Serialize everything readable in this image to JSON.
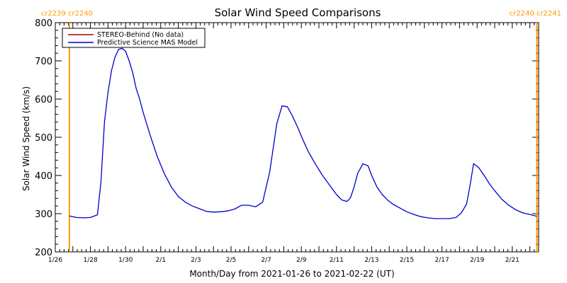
{
  "chart_data": {
    "type": "line",
    "title": "Solar Wind Speed Comparisons",
    "xlabel": "Month/Day from 2021-01-26 to 2021-02-22 (UT)",
    "ylabel": "Solar Wind Speed (km/s)",
    "ylim": [
      200,
      800
    ],
    "xlim_days": [
      0,
      27.5
    ],
    "y_ticks": [
      200,
      300,
      400,
      500,
      600,
      700,
      800
    ],
    "x_ticks": [
      {
        "day": 0,
        "label": "1/26"
      },
      {
        "day": 2,
        "label": "1/28"
      },
      {
        "day": 4,
        "label": "1/30"
      },
      {
        "day": 6,
        "label": "2/1"
      },
      {
        "day": 8,
        "label": "2/3"
      },
      {
        "day": 10,
        "label": "2/5"
      },
      {
        "day": 12,
        "label": "2/7"
      },
      {
        "day": 14,
        "label": "2/9"
      },
      {
        "day": 16,
        "label": "2/11"
      },
      {
        "day": 18,
        "label": "2/13"
      },
      {
        "day": 20,
        "label": "2/15"
      },
      {
        "day": 22,
        "label": "2/17"
      },
      {
        "day": 24,
        "label": "2/19"
      },
      {
        "day": 26,
        "label": "2/21"
      }
    ],
    "legend": {
      "placement": "top-left",
      "entries": [
        {
          "label": "STEREO-Behind (No data)",
          "color": "#aa0000"
        },
        {
          "label": "Predictive Science MAS Model",
          "color": "#0000cc"
        }
      ]
    },
    "carrington_markers": [
      {
        "day": 0.8,
        "label": "cr2239 cr2240",
        "side": "left"
      },
      {
        "day": 27.4,
        "label": "cr2240 cr2241",
        "side": "right"
      }
    ],
    "marker_color": "#ff9900",
    "series": [
      {
        "name": "Predictive Science MAS Model",
        "color": "#0000cc",
        "x": [
          0.8,
          1.2,
          1.6,
          2.0,
          2.4,
          2.6,
          2.8,
          3.0,
          3.2,
          3.4,
          3.6,
          3.8,
          4.0,
          4.2,
          4.4,
          4.6,
          4.8,
          5.0,
          5.4,
          5.8,
          6.2,
          6.6,
          7.0,
          7.4,
          7.8,
          8.2,
          8.6,
          9.0,
          9.4,
          9.8,
          10.2,
          10.6,
          11.0,
          11.4,
          11.8,
          12.2,
          12.6,
          12.9,
          13.2,
          13.5,
          13.8,
          14.1,
          14.4,
          14.8,
          15.2,
          15.6,
          16.0,
          16.3,
          16.6,
          16.8,
          17.0,
          17.2,
          17.5,
          17.8,
          18.0,
          18.3,
          18.6,
          18.9,
          19.2,
          19.6,
          20.0,
          20.4,
          20.8,
          21.2,
          21.6,
          22.0,
          22.4,
          22.8,
          23.1,
          23.4,
          23.6,
          23.8,
          24.1,
          24.4,
          24.7,
          25.0,
          25.4,
          25.8,
          26.2,
          26.6,
          27.0,
          27.4
        ],
        "y": [
          294,
          290,
          289,
          290,
          297,
          385,
          540,
          618,
          675,
          710,
          730,
          733,
          725,
          700,
          670,
          628,
          600,
          565,
          505,
          450,
          405,
          370,
          345,
          330,
          320,
          313,
          306,
          304,
          305,
          307,
          312,
          322,
          322,
          318,
          330,
          410,
          535,
          582,
          580,
          555,
          525,
          492,
          462,
          430,
          400,
          375,
          350,
          336,
          332,
          342,
          370,
          405,
          431,
          425,
          400,
          370,
          350,
          336,
          325,
          315,
          305,
          298,
          292,
          289,
          287,
          287,
          287,
          290,
          302,
          325,
          375,
          431,
          420,
          400,
          378,
          360,
          338,
          322,
          310,
          302,
          298,
          293
        ]
      }
    ]
  }
}
